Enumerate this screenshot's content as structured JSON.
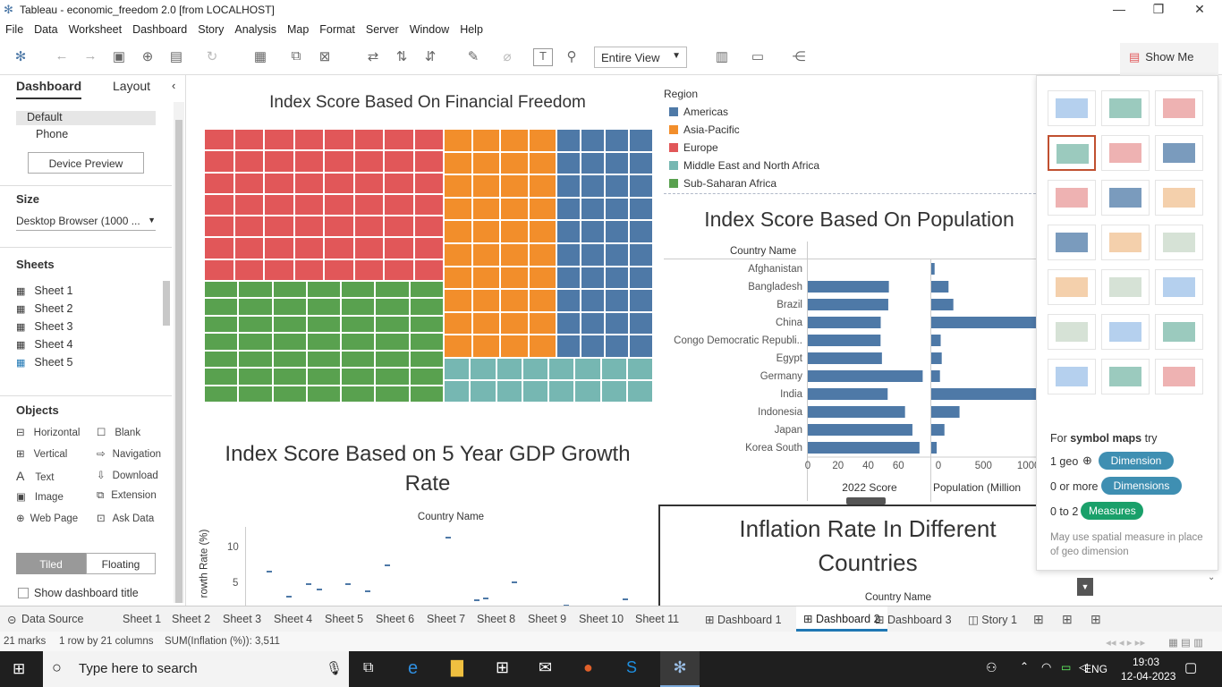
{
  "window": {
    "title": "Tableau - economic_freedom 2.0 [from LOCALHOST]"
  },
  "menu": [
    "File",
    "Data",
    "Worksheet",
    "Dashboard",
    "Story",
    "Analysis",
    "Map",
    "Format",
    "Server",
    "Window",
    "Help"
  ],
  "toolbar": {
    "view_select": "Entire View",
    "show_me": "Show Me"
  },
  "left": {
    "tab_dashboard": "Dashboard",
    "tab_layout": "Layout",
    "device_default": "Default",
    "device_phone": "Phone",
    "device_preview": "Device Preview",
    "size_header": "Size",
    "size_value": "Desktop Browser (1000 ...",
    "sheets_header": "Sheets",
    "sheets": [
      "Sheet 1",
      "Sheet 2",
      "Sheet 3",
      "Sheet 4",
      "Sheet 5"
    ],
    "objects_header": "Objects",
    "objects": [
      "Horizontal",
      "Blank",
      "Vertical",
      "Navigation",
      "Text",
      "Download",
      "Image",
      "Extension",
      "Web Page",
      "Ask Data"
    ],
    "tiled": "Tiled",
    "floating": "Floating",
    "show_title": "Show dashboard title"
  },
  "charts": {
    "treemap_title": "Index Score Based On Financial Freedom",
    "legend_title": "Region",
    "legend": [
      {
        "name": "Americas",
        "color": "#4e79a7"
      },
      {
        "name": "Asia-Pacific",
        "color": "#f28e2b"
      },
      {
        "name": "Europe",
        "color": "#e15759"
      },
      {
        "name": "Middle East and North Africa",
        "color": "#76b7b2"
      },
      {
        "name": "Sub-Saharan Africa",
        "color": "#59a14f"
      }
    ],
    "pop_title": "Index Score Based On Population",
    "country_header": "Country Name",
    "gdp_title_1": "Index Score Based on 5 Year GDP Growth",
    "gdp_title_2": "Rate",
    "gdp_ylabel": "rowth Rate (%)",
    "gdp_ticks": [
      "10",
      "5"
    ],
    "inflation_title_1": "Inflation Rate In Different",
    "inflation_title_2": "Countries"
  },
  "chart_data": {
    "type": "bar",
    "categories": [
      "Afghanistan",
      "Bangladesh",
      "Brazil",
      "China",
      "Congo Democratic Republi..",
      "Egypt",
      "Germany",
      "India",
      "Indonesia",
      "Japan",
      "Korea South"
    ],
    "series": [
      {
        "name": "2022 Score",
        "values": [
          0,
          53.7,
          53.3,
          48.3,
          48.2,
          49.1,
          76.1,
          52.9,
          64.4,
          69.3,
          74.0
        ]
      },
      {
        "name": "Population (Millions)",
        "values": [
          32,
          165,
          211,
          1400,
          90,
          100,
          83,
          1380,
          270,
          126,
          52
        ]
      }
    ],
    "x1_ticks": [
      "0",
      "20",
      "40",
      "60"
    ],
    "x2_ticks": [
      "0",
      "500",
      "1000"
    ],
    "x1_label": "2022 Score",
    "x2_label": "Population (Million"
  },
  "showme": {
    "hint_prefix": "For ",
    "hint_bold": "symbol maps",
    "hint_suffix": " try",
    "row1_label": "1 geo",
    "row1_pill": "Dimension",
    "row2_label": "0 or more",
    "row2_pill": "Dimensions",
    "row3_label": "0 to 2",
    "row3_pill": "Measures",
    "note": "May use spatial measure in place of geo dimension"
  },
  "tabs": [
    "Data Source",
    "Sheet 1",
    "Sheet 2",
    "Sheet 3",
    "Sheet 4",
    "Sheet 5",
    "Sheet 6",
    "Sheet 7",
    "Sheet 8",
    "Sheet 9",
    "Sheet 10",
    "Sheet 11",
    "Dashboard 1",
    "Dashboard 2",
    "Dashboard 3",
    "Story 1"
  ],
  "status": {
    "marks": "21 marks",
    "rows": "1 row by 21 columns",
    "sum": "SUM(Inflation (%)): 3,511"
  },
  "taskbar": {
    "search": "Type here to search",
    "lang": "ENG",
    "time": "19:03",
    "date": "12-04-2023"
  }
}
